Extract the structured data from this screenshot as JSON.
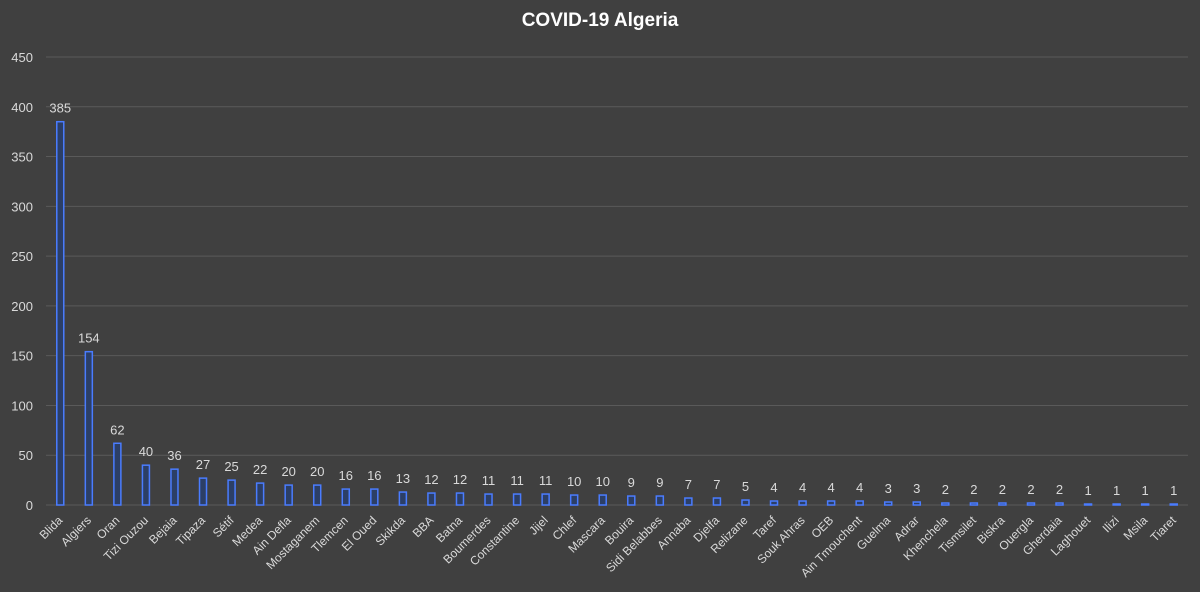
{
  "chart_data": {
    "type": "bar",
    "title": "COVID-19 Algeria",
    "xlabel": "",
    "ylabel": "",
    "ylim": [
      0,
      450
    ],
    "yticks": [
      0,
      50,
      100,
      150,
      200,
      250,
      300,
      350,
      400,
      450
    ],
    "grid": true,
    "legend": "none",
    "categories": [
      "Blida",
      "Algiers",
      "Oran",
      "Tizi Ouzou",
      "Bejaia",
      "Tipaza",
      "Sétif",
      "Medea",
      "Ain Defla",
      "Mostaganem",
      "Tlemcen",
      "El Oued",
      "Skikda",
      "BBA",
      "Batna",
      "Boumerdes",
      "Constantine",
      "Jijel",
      "Chlef",
      "Mascara",
      "Bouira",
      "Sidi Belabbes",
      "Annaba",
      "Djelfa",
      "Relizane",
      "Taref",
      "Souk Ahras",
      "OEB",
      "Ain Tmouchent",
      "Guelma",
      "Adrar",
      "Khenchela",
      "Tismsilet",
      "Biskra",
      "Ouergla",
      "Gherdaia",
      "Laghouet",
      "Ilizi",
      "Msila",
      "Tiaret"
    ],
    "values": [
      385,
      154,
      62,
      40,
      36,
      27,
      25,
      22,
      20,
      20,
      16,
      16,
      13,
      12,
      12,
      11,
      11,
      11,
      10,
      10,
      9,
      9,
      7,
      7,
      5,
      4,
      4,
      4,
      4,
      3,
      3,
      2,
      2,
      2,
      2,
      2,
      1,
      1,
      1,
      1
    ],
    "colors": {
      "background": "#404040",
      "bar_fill": "#2c3f66",
      "bar_edge": "#4a7cff",
      "grid": "#5a5a5a",
      "text": "#d9d9d9"
    }
  }
}
